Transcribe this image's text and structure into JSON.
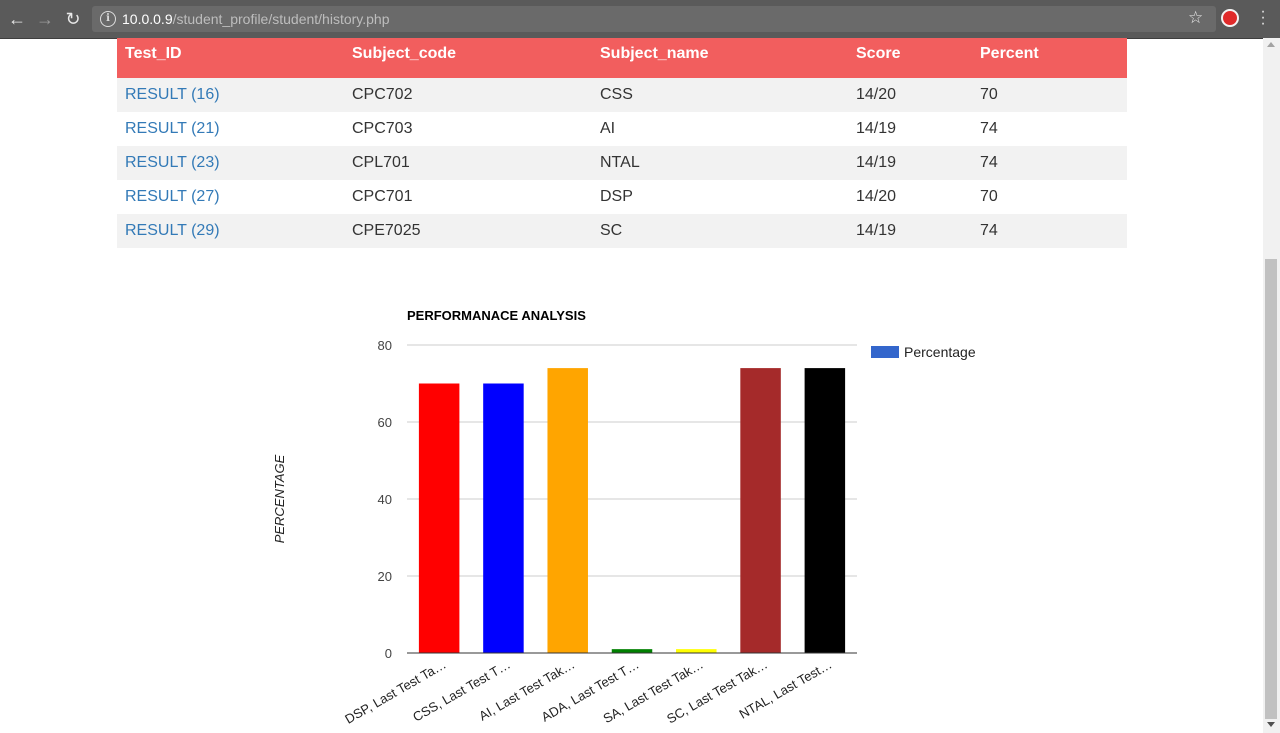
{
  "browser": {
    "url_host": "10.0.0.9",
    "url_path": "/student_profile/student/history.php"
  },
  "table": {
    "headers": [
      "Test_ID",
      "Subject_code",
      "Subject_name",
      "Score",
      "Percent"
    ],
    "rows": [
      {
        "test_id": "RESULT (16)",
        "subject_code": "CPC702",
        "subject_name": "CSS",
        "score": "14/20",
        "percent": "70"
      },
      {
        "test_id": "RESULT (21)",
        "subject_code": "CPC703",
        "subject_name": "AI",
        "score": "14/19",
        "percent": "74"
      },
      {
        "test_id": "RESULT (23)",
        "subject_code": "CPL701",
        "subject_name": "NTAL",
        "score": "14/19",
        "percent": "74"
      },
      {
        "test_id": "RESULT (27)",
        "subject_code": "CPC701",
        "subject_name": "DSP",
        "score": "14/20",
        "percent": "70"
      },
      {
        "test_id": "RESULT (29)",
        "subject_code": "CPE7025",
        "subject_name": "SC",
        "score": "14/19",
        "percent": "74"
      }
    ]
  },
  "chart_data": {
    "type": "bar",
    "title": "PERFORMANACE ANALYSIS",
    "ylabel": "PERCENTAGE",
    "xlabel": "",
    "ylim": [
      0,
      80
    ],
    "yticks": [
      0,
      20,
      40,
      60,
      80
    ],
    "grid": true,
    "legend": "right",
    "categories": [
      "DSP, Last Test Ta…",
      "CSS, Last Test T…",
      "AI, Last Test Tak…",
      "ADA, Last Test T…",
      "SA, Last Test Tak…",
      "SC, Last Test Tak…",
      "NTAL, Last Test…"
    ],
    "series": [
      {
        "name": "Percentage",
        "values": [
          70,
          70,
          74,
          1,
          1,
          74,
          74
        ],
        "legend_color": "#3366cc"
      }
    ],
    "bar_colors": [
      "#ff0000",
      "#0000ff",
      "#ffa500",
      "#008000",
      "#ffff00",
      "#a52a2a",
      "#000000"
    ]
  }
}
